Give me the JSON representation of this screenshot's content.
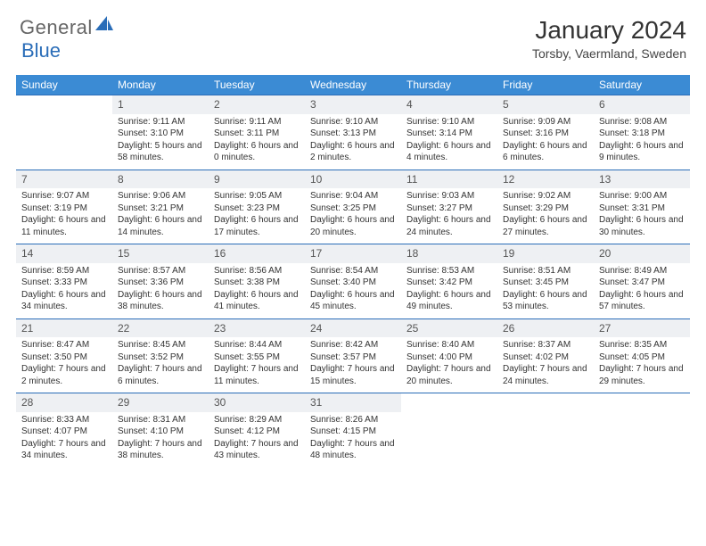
{
  "logo": {
    "part1": "General",
    "part2": "Blue"
  },
  "title": "January 2024",
  "location": "Torsby, Vaermland, Sweden",
  "day_headers": [
    "Sunday",
    "Monday",
    "Tuesday",
    "Wednesday",
    "Thursday",
    "Friday",
    "Saturday"
  ],
  "colors": {
    "header_bg": "#3b8bd4",
    "header_text": "#ffffff",
    "daynum_bg": "#eef0f3",
    "rule": "#2a6db8",
    "text": "#333333",
    "logo_gray": "#666666",
    "logo_blue": "#2a6db8"
  },
  "typography": {
    "title_fontsize": 28,
    "location_fontsize": 14,
    "dayhead_fontsize": 12,
    "daynum_fontsize": 12,
    "cell_fontsize": 10
  },
  "weeks": [
    {
      "nums": [
        "",
        "1",
        "2",
        "3",
        "4",
        "5",
        "6"
      ],
      "cells": [
        {
          "sunrise": "",
          "sunset": "",
          "daylight": ""
        },
        {
          "sunrise": "Sunrise: 9:11 AM",
          "sunset": "Sunset: 3:10 PM",
          "daylight": "Daylight: 5 hours and 58 minutes."
        },
        {
          "sunrise": "Sunrise: 9:11 AM",
          "sunset": "Sunset: 3:11 PM",
          "daylight": "Daylight: 6 hours and 0 minutes."
        },
        {
          "sunrise": "Sunrise: 9:10 AM",
          "sunset": "Sunset: 3:13 PM",
          "daylight": "Daylight: 6 hours and 2 minutes."
        },
        {
          "sunrise": "Sunrise: 9:10 AM",
          "sunset": "Sunset: 3:14 PM",
          "daylight": "Daylight: 6 hours and 4 minutes."
        },
        {
          "sunrise": "Sunrise: 9:09 AM",
          "sunset": "Sunset: 3:16 PM",
          "daylight": "Daylight: 6 hours and 6 minutes."
        },
        {
          "sunrise": "Sunrise: 9:08 AM",
          "sunset": "Sunset: 3:18 PM",
          "daylight": "Daylight: 6 hours and 9 minutes."
        }
      ]
    },
    {
      "nums": [
        "7",
        "8",
        "9",
        "10",
        "11",
        "12",
        "13"
      ],
      "cells": [
        {
          "sunrise": "Sunrise: 9:07 AM",
          "sunset": "Sunset: 3:19 PM",
          "daylight": "Daylight: 6 hours and 11 minutes."
        },
        {
          "sunrise": "Sunrise: 9:06 AM",
          "sunset": "Sunset: 3:21 PM",
          "daylight": "Daylight: 6 hours and 14 minutes."
        },
        {
          "sunrise": "Sunrise: 9:05 AM",
          "sunset": "Sunset: 3:23 PM",
          "daylight": "Daylight: 6 hours and 17 minutes."
        },
        {
          "sunrise": "Sunrise: 9:04 AM",
          "sunset": "Sunset: 3:25 PM",
          "daylight": "Daylight: 6 hours and 20 minutes."
        },
        {
          "sunrise": "Sunrise: 9:03 AM",
          "sunset": "Sunset: 3:27 PM",
          "daylight": "Daylight: 6 hours and 24 minutes."
        },
        {
          "sunrise": "Sunrise: 9:02 AM",
          "sunset": "Sunset: 3:29 PM",
          "daylight": "Daylight: 6 hours and 27 minutes."
        },
        {
          "sunrise": "Sunrise: 9:00 AM",
          "sunset": "Sunset: 3:31 PM",
          "daylight": "Daylight: 6 hours and 30 minutes."
        }
      ]
    },
    {
      "nums": [
        "14",
        "15",
        "16",
        "17",
        "18",
        "19",
        "20"
      ],
      "cells": [
        {
          "sunrise": "Sunrise: 8:59 AM",
          "sunset": "Sunset: 3:33 PM",
          "daylight": "Daylight: 6 hours and 34 minutes."
        },
        {
          "sunrise": "Sunrise: 8:57 AM",
          "sunset": "Sunset: 3:36 PM",
          "daylight": "Daylight: 6 hours and 38 minutes."
        },
        {
          "sunrise": "Sunrise: 8:56 AM",
          "sunset": "Sunset: 3:38 PM",
          "daylight": "Daylight: 6 hours and 41 minutes."
        },
        {
          "sunrise": "Sunrise: 8:54 AM",
          "sunset": "Sunset: 3:40 PM",
          "daylight": "Daylight: 6 hours and 45 minutes."
        },
        {
          "sunrise": "Sunrise: 8:53 AM",
          "sunset": "Sunset: 3:42 PM",
          "daylight": "Daylight: 6 hours and 49 minutes."
        },
        {
          "sunrise": "Sunrise: 8:51 AM",
          "sunset": "Sunset: 3:45 PM",
          "daylight": "Daylight: 6 hours and 53 minutes."
        },
        {
          "sunrise": "Sunrise: 8:49 AM",
          "sunset": "Sunset: 3:47 PM",
          "daylight": "Daylight: 6 hours and 57 minutes."
        }
      ]
    },
    {
      "nums": [
        "21",
        "22",
        "23",
        "24",
        "25",
        "26",
        "27"
      ],
      "cells": [
        {
          "sunrise": "Sunrise: 8:47 AM",
          "sunset": "Sunset: 3:50 PM",
          "daylight": "Daylight: 7 hours and 2 minutes."
        },
        {
          "sunrise": "Sunrise: 8:45 AM",
          "sunset": "Sunset: 3:52 PM",
          "daylight": "Daylight: 7 hours and 6 minutes."
        },
        {
          "sunrise": "Sunrise: 8:44 AM",
          "sunset": "Sunset: 3:55 PM",
          "daylight": "Daylight: 7 hours and 11 minutes."
        },
        {
          "sunrise": "Sunrise: 8:42 AM",
          "sunset": "Sunset: 3:57 PM",
          "daylight": "Daylight: 7 hours and 15 minutes."
        },
        {
          "sunrise": "Sunrise: 8:40 AM",
          "sunset": "Sunset: 4:00 PM",
          "daylight": "Daylight: 7 hours and 20 minutes."
        },
        {
          "sunrise": "Sunrise: 8:37 AM",
          "sunset": "Sunset: 4:02 PM",
          "daylight": "Daylight: 7 hours and 24 minutes."
        },
        {
          "sunrise": "Sunrise: 8:35 AM",
          "sunset": "Sunset: 4:05 PM",
          "daylight": "Daylight: 7 hours and 29 minutes."
        }
      ]
    },
    {
      "nums": [
        "28",
        "29",
        "30",
        "31",
        "",
        "",
        ""
      ],
      "cells": [
        {
          "sunrise": "Sunrise: 8:33 AM",
          "sunset": "Sunset: 4:07 PM",
          "daylight": "Daylight: 7 hours and 34 minutes."
        },
        {
          "sunrise": "Sunrise: 8:31 AM",
          "sunset": "Sunset: 4:10 PM",
          "daylight": "Daylight: 7 hours and 38 minutes."
        },
        {
          "sunrise": "Sunrise: 8:29 AM",
          "sunset": "Sunset: 4:12 PM",
          "daylight": "Daylight: 7 hours and 43 minutes."
        },
        {
          "sunrise": "Sunrise: 8:26 AM",
          "sunset": "Sunset: 4:15 PM",
          "daylight": "Daylight: 7 hours and 48 minutes."
        },
        {
          "sunrise": "",
          "sunset": "",
          "daylight": ""
        },
        {
          "sunrise": "",
          "sunset": "",
          "daylight": ""
        },
        {
          "sunrise": "",
          "sunset": "",
          "daylight": ""
        }
      ]
    }
  ]
}
